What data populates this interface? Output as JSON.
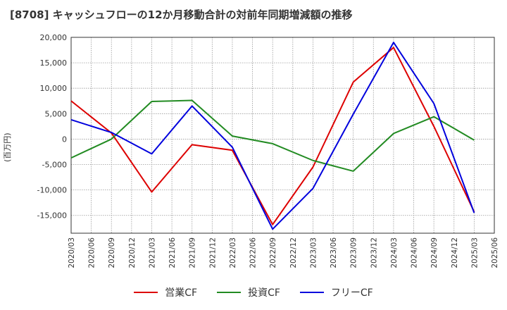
{
  "chart_data": {
    "type": "line",
    "title": "[8708]  キャッシュフローの12か月移動合計の対前年同期増減額の推移",
    "ylabel": "(百万円)",
    "ylim": [
      -18500,
      20000
    ],
    "yticks": [
      20000,
      15000,
      10000,
      5000,
      0,
      -5000,
      -10000,
      -15000
    ],
    "ytick_labels": [
      "20,000",
      "15,000",
      "10,000",
      "5,000",
      "0",
      "-5,000",
      "-10,000",
      "-15,000"
    ],
    "xticks": [
      "2020/03",
      "2020/06",
      "2020/09",
      "2020/12",
      "2021/03",
      "2021/06",
      "2021/09",
      "2021/12",
      "2022/03",
      "2022/06",
      "2022/09",
      "2022/12",
      "2023/03",
      "2023/06",
      "2023/09",
      "2023/12",
      "2024/03",
      "2024/06",
      "2024/09",
      "2024/12",
      "2025/03",
      "2025/06"
    ],
    "grid": true,
    "legend_position": "bottom",
    "series": [
      {
        "name": "営業CF",
        "color": "#dd0000",
        "x": [
          "2020/03",
          "2020/09",
          "2021/03",
          "2021/09",
          "2022/03",
          "2022/09",
          "2023/03",
          "2023/09",
          "2024/03",
          "2024/09",
          "2025/03"
        ],
        "values": [
          7500,
          1200,
          -10400,
          -1100,
          -2200,
          -16800,
          -5500,
          11200,
          18000,
          2500,
          -14300
        ]
      },
      {
        "name": "投資CF",
        "color": "#228b22",
        "x": [
          "2020/03",
          "2020/09",
          "2021/03",
          "2021/09",
          "2022/03",
          "2022/09",
          "2023/03",
          "2023/09",
          "2024/03",
          "2024/09",
          "2025/03"
        ],
        "values": [
          -3700,
          0,
          7400,
          7600,
          600,
          -900,
          -4200,
          -6300,
          1100,
          4400,
          -200
        ]
      },
      {
        "name": "フリーCF",
        "color": "#0000dd",
        "x": [
          "2020/03",
          "2020/09",
          "2021/03",
          "2021/09",
          "2022/03",
          "2022/09",
          "2023/03",
          "2023/09",
          "2024/03",
          "2024/09",
          "2025/03"
        ],
        "values": [
          3800,
          1300,
          -2900,
          6500,
          -1600,
          -17700,
          -9700,
          4900,
          19000,
          7000,
          -14500
        ]
      }
    ]
  }
}
